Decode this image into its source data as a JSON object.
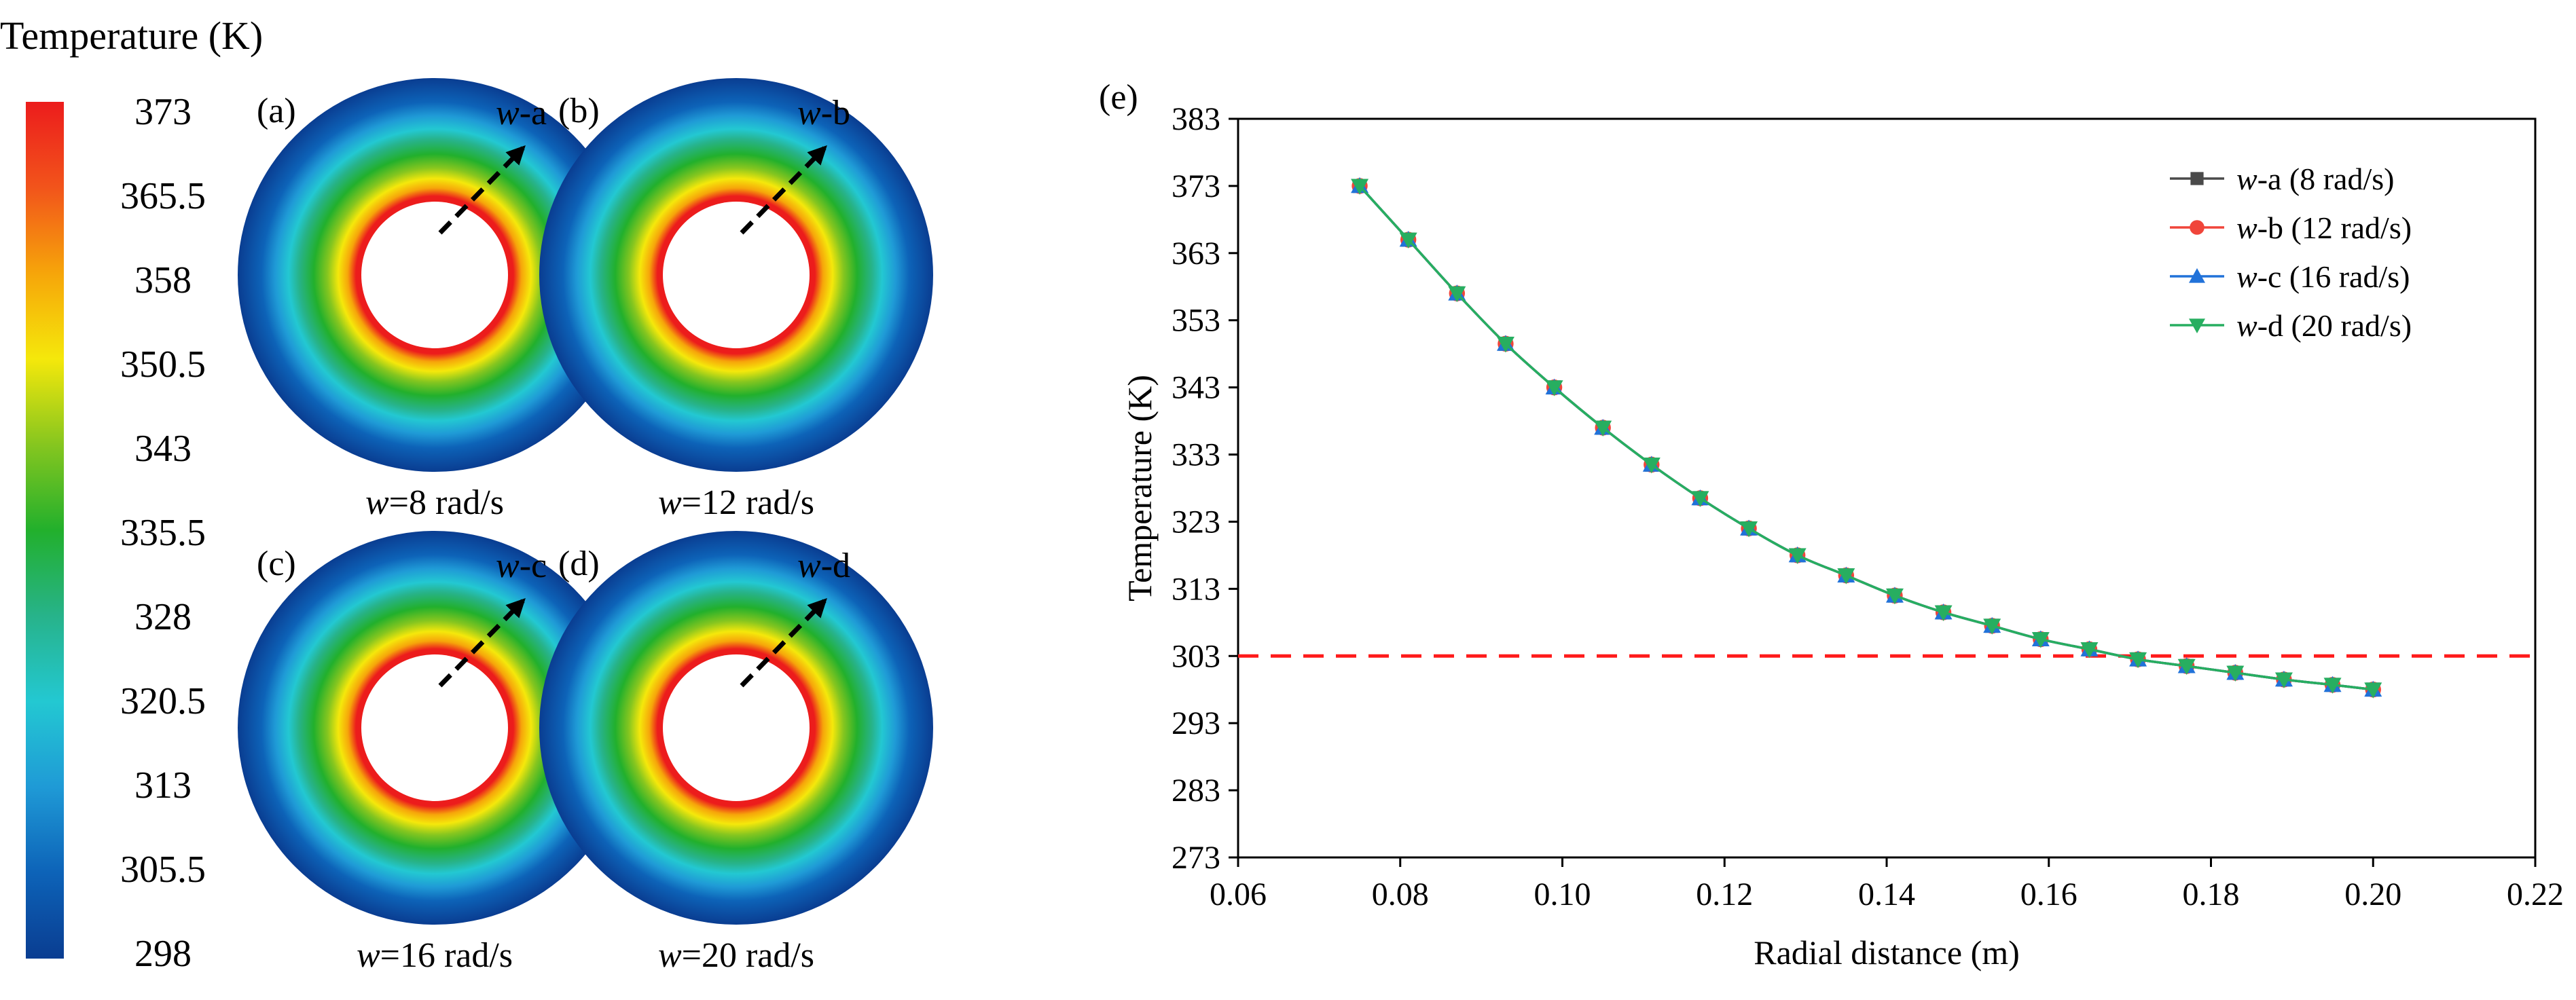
{
  "colorbar": {
    "title": "Temperature (K)",
    "ticks": [
      "373",
      "365.5",
      "358",
      "350.5",
      "343",
      "335.5",
      "328",
      "320.5",
      "313",
      "305.5",
      "298"
    ],
    "min": 298,
    "max": 373,
    "colors": [
      "#0a3d91",
      "#0d63b8",
      "#1f9ad6",
      "#23c8d2",
      "#27b38a",
      "#22b02c",
      "#86c61f",
      "#f5e80b",
      "#f6a50a",
      "#f2541b",
      "#ec1c1c"
    ]
  },
  "discs": [
    {
      "panel": "(a)",
      "arrow_italic": "w",
      "arrow_suffix": "-a",
      "caption_italic": "w",
      "caption_rest": "=8 rad/s"
    },
    {
      "panel": "(b)",
      "arrow_italic": "w",
      "arrow_suffix": "-b",
      "caption_italic": "w",
      "caption_rest": "=12 rad/s"
    },
    {
      "panel": "(c)",
      "arrow_italic": "w",
      "arrow_suffix": "-c",
      "caption_italic": "w",
      "caption_rest": "=16 rad/s"
    },
    {
      "panel": "(d)",
      "arrow_italic": "w",
      "arrow_suffix": "-d",
      "caption_italic": "w",
      "caption_rest": "=20 rad/s"
    }
  ],
  "chart_data": {
    "type": "line",
    "panel_label": "(e)",
    "xlabel": "Radial distance (m)",
    "ylabel": "Temperature (K)",
    "xlim": [
      0.06,
      0.22
    ],
    "ylim": [
      273,
      383
    ],
    "xticks": [
      "0.06",
      "0.08",
      "0.10",
      "0.12",
      "0.14",
      "0.16",
      "0.18",
      "0.20",
      "0.22"
    ],
    "yticks": [
      "273",
      "283",
      "293",
      "303",
      "313",
      "323",
      "333",
      "343",
      "353",
      "363",
      "373",
      "383"
    ],
    "x": [
      0.075,
      0.081,
      0.087,
      0.093,
      0.099,
      0.105,
      0.111,
      0.117,
      0.123,
      0.129,
      0.135,
      0.141,
      0.147,
      0.153,
      0.159,
      0.165,
      0.171,
      0.177,
      0.183,
      0.189,
      0.195,
      0.2
    ],
    "series": [
      {
        "name_italic": "w",
        "name_rest": "-a (8 rad/s)",
        "marker": "square",
        "color": "#4a4a4a",
        "values": [
          373,
          365,
          357,
          349.5,
          343,
          337,
          331.5,
          326.5,
          322,
          318,
          315,
          312,
          309.5,
          307.5,
          305.5,
          304,
          302.5,
          301.5,
          300.5,
          299.5,
          298.7,
          298
        ]
      },
      {
        "name_italic": "w",
        "name_rest": "-b (12 rad/s)",
        "marker": "circle",
        "color": "#f0453a",
        "values": [
          373,
          365,
          357,
          349.5,
          343,
          337,
          331.5,
          326.5,
          322,
          318,
          315,
          312,
          309.5,
          307.5,
          305.5,
          304,
          302.5,
          301.5,
          300.5,
          299.5,
          298.7,
          298
        ]
      },
      {
        "name_italic": "w",
        "name_rest": "-c (16 rad/s)",
        "marker": "triangle-up",
        "color": "#2172d9",
        "values": [
          373,
          365,
          357,
          349.5,
          343,
          337,
          331.5,
          326.5,
          322,
          318,
          315,
          312,
          309.5,
          307.5,
          305.5,
          304,
          302.5,
          301.5,
          300.5,
          299.5,
          298.7,
          298
        ]
      },
      {
        "name_italic": "w",
        "name_rest": "-d (20 rad/s)",
        "marker": "triangle-down",
        "color": "#27ae60",
        "values": [
          373,
          365,
          357,
          349.5,
          343,
          337,
          331.5,
          326.5,
          322,
          318,
          315,
          312,
          309.5,
          307.5,
          305.5,
          304,
          302.5,
          301.5,
          300.5,
          299.5,
          298.7,
          298
        ]
      }
    ],
    "reference_line": {
      "y": 303,
      "color": "#ff1a1a",
      "style": "dashed"
    },
    "legend_position": "top-right",
    "grid": false
  }
}
